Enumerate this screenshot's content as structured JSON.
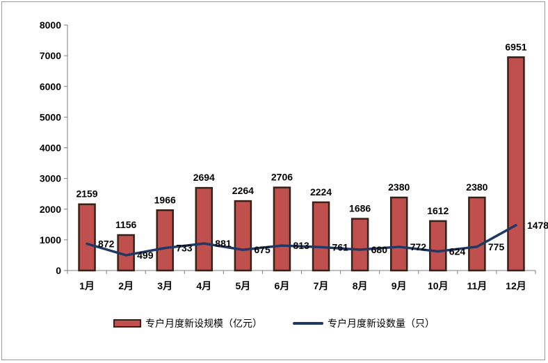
{
  "chart_data": {
    "type": "bar",
    "categories": [
      "1月",
      "2月",
      "3月",
      "4月",
      "5月",
      "6月",
      "7月",
      "8月",
      "9月",
      "10月",
      "11月",
      "12月"
    ],
    "series": [
      {
        "name": "专户月度新设规模（亿元）",
        "type": "bar",
        "values": [
          2159,
          1156,
          1966,
          2694,
          2264,
          2706,
          2224,
          1686,
          2380,
          1612,
          2380,
          6951
        ],
        "labels": [
          "2159",
          "1156",
          "1966",
          "2694",
          "2264",
          "2706",
          "2224",
          "1686",
          "2380",
          "1612",
          "2380",
          "6951"
        ],
        "color": "#c0504d",
        "edge_color": "#3b1f14"
      },
      {
        "name": "专户月度新设数量（只）",
        "type": "line",
        "values": [
          872,
          499,
          733,
          881,
          675,
          813,
          761,
          680,
          772,
          624,
          775,
          1478
        ],
        "labels": [
          "872",
          "499",
          "733",
          "881",
          "675",
          "813",
          "761",
          "680",
          "772",
          "624",
          "775",
          "1478"
        ],
        "color": "#1f3864"
      }
    ],
    "ylim": [
      0,
      8000
    ],
    "yticks": [
      "0",
      "1000",
      "2000",
      "3000",
      "4000",
      "5000",
      "6000",
      "7000",
      "8000"
    ],
    "grid": false,
    "legend": "bottom"
  }
}
